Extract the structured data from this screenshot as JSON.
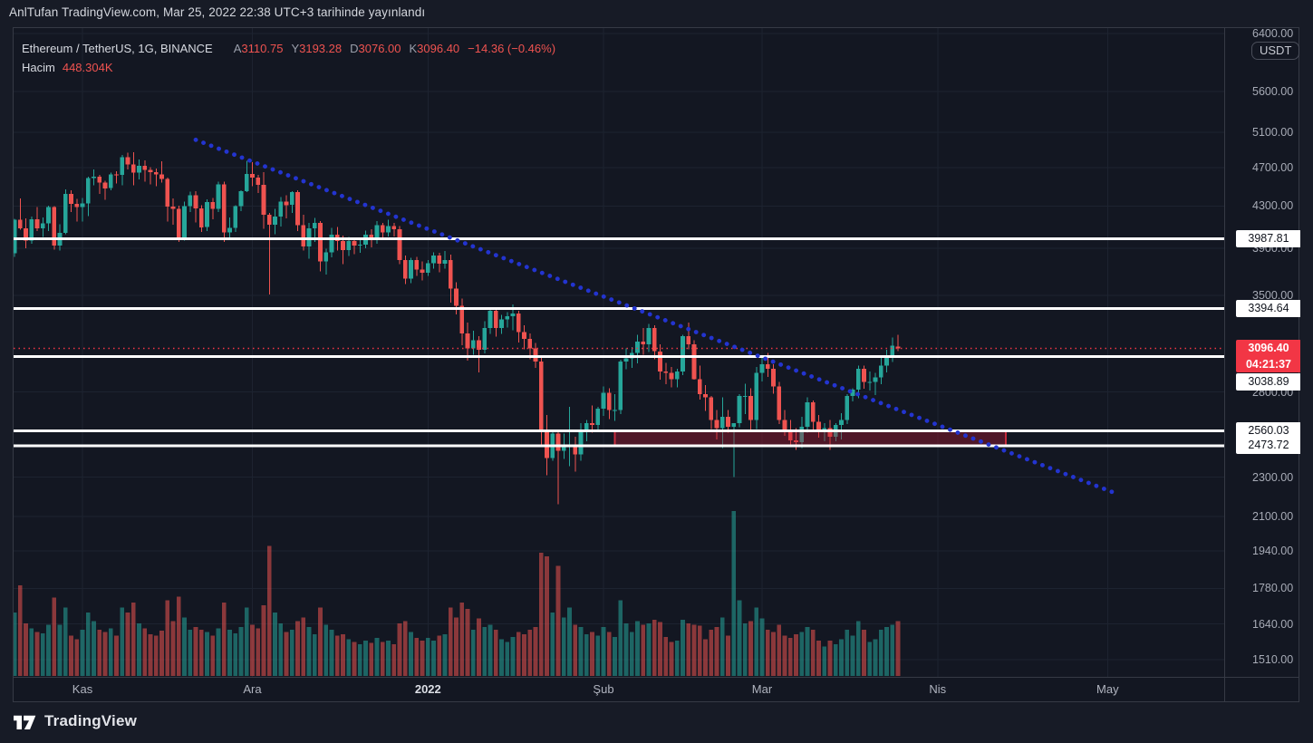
{
  "banner": {
    "text": "AnlTufan TradingView.com, Mar 25, 2022 22:38 UTC+3 tarihinde yayınlandı"
  },
  "legend": {
    "symbol": "Ethereum / TetherUS, 1G, BINANCE",
    "ohlc": [
      {
        "label": "A",
        "value": "3110.75"
      },
      {
        "label": "Y",
        "value": "3193.28"
      },
      {
        "label": "D",
        "value": "3076.00"
      },
      {
        "label": "K",
        "value": "3096.40"
      }
    ],
    "change": "−14.36 (−0.46%)",
    "volume_label": "Hacim",
    "volume_value": "448.304K"
  },
  "price_axis": {
    "currency": "USDT",
    "ticks": [
      "6400.00",
      "5600.00",
      "5100.00",
      "4700.00",
      "4300.00",
      "3900.00",
      "3500.00",
      "2800.00",
      "2300.00",
      "2100.00",
      "1940.00",
      "1780.00",
      "1640.00",
      "1510.00"
    ],
    "current": {
      "price": "3096.40",
      "countdown": "04:21:37"
    }
  },
  "time_axis": {
    "labels": [
      {
        "text": "Kas",
        "day": 12,
        "emphasis": false
      },
      {
        "text": "Ara",
        "day": 42,
        "emphasis": false
      },
      {
        "text": "2022",
        "day": 73,
        "emphasis": true
      },
      {
        "text": "Şub",
        "day": 104,
        "emphasis": false
      },
      {
        "text": "Mar",
        "day": 132,
        "emphasis": false
      },
      {
        "text": "Nis",
        "day": 163,
        "emphasis": false
      },
      {
        "text": "May",
        "day": 193,
        "emphasis": false
      }
    ]
  },
  "footer": {
    "brand": "TradingView"
  },
  "colors": {
    "up": "#26a69a",
    "down": "#ef5350",
    "badge_red": "#f23645",
    "trendline_blue": "#2334d0",
    "zone_border": "#c62b3c",
    "zone_fill": "rgba(178,24,49,0.38)",
    "line_white": "#ffffff",
    "grid": "#1d2330",
    "volume_up": "rgba(38,166,154,0.55)",
    "volume_down": "rgba(239,83,80,0.55)"
  },
  "chart_data": {
    "type": "candlestick",
    "title": "Ethereum / TetherUS, 1G, BINANCE",
    "interval": "1G",
    "scale": {
      "type": "log",
      "tick_values": [
        6400,
        5600,
        5100,
        4700,
        4300,
        3900,
        3500,
        2800,
        2300,
        2100,
        1940,
        1780,
        1640,
        1510
      ]
    },
    "volume_unit": "K",
    "current_price": 3096.4,
    "horizontal_lines": [
      "3987.81",
      "3394.64",
      "3038.89",
      "2560.03",
      "2473.72"
    ],
    "trendline": {
      "from": {
        "day": 32,
        "price": 5010
      },
      "to": {
        "day": 195,
        "price": 2210
      }
    },
    "zone": {
      "from_day": 106,
      "to_day": 175,
      "top": 2560.03,
      "bottom": 2473.72
    },
    "candles": [
      [
        3855,
        4175,
        3825,
        4165,
        520
      ],
      [
        4165,
        4375,
        4070,
        4085,
        740
      ],
      [
        4085,
        4180,
        3900,
        3970,
        430
      ],
      [
        3970,
        4195,
        3940,
        4170,
        390
      ],
      [
        4170,
        4290,
        4060,
        4085,
        360
      ],
      [
        4085,
        4190,
        4005,
        4130,
        350
      ],
      [
        4130,
        4305,
        4060,
        4290,
        420
      ],
      [
        4290,
        4300,
        3890,
        3925,
        640
      ],
      [
        3925,
        4125,
        3880,
        4040,
        420
      ],
      [
        4040,
        4470,
        4030,
        4420,
        560
      ],
      [
        4420,
        4460,
        4240,
        4320,
        330
      ],
      [
        4320,
        4370,
        4150,
        4290,
        300
      ],
      [
        4290,
        4380,
        4150,
        4325,
        380
      ],
      [
        4325,
        4600,
        4200,
        4585,
        520
      ],
      [
        4585,
        4680,
        4510,
        4600,
        450
      ],
      [
        4600,
        4620,
        4420,
        4540,
        380
      ],
      [
        4540,
        4560,
        4360,
        4480,
        360
      ],
      [
        4480,
        4645,
        4460,
        4625,
        390
      ],
      [
        4625,
        4660,
        4530,
        4620,
        330
      ],
      [
        4620,
        4840,
        4510,
        4815,
        560
      ],
      [
        4815,
        4865,
        4680,
        4735,
        520
      ],
      [
        4735,
        4870,
        4510,
        4645,
        600
      ],
      [
        4645,
        4790,
        4570,
        4720,
        430
      ],
      [
        4720,
        4780,
        4550,
        4675,
        390
      ],
      [
        4675,
        4705,
        4520,
        4650,
        340
      ],
      [
        4650,
        4690,
        4500,
        4625,
        330
      ],
      [
        4625,
        4770,
        4540,
        4575,
        370
      ],
      [
        4575,
        4590,
        4150,
        4295,
        620
      ],
      [
        4295,
        4375,
        4120,
        4270,
        450
      ],
      [
        4270,
        4305,
        3960,
        3995,
        650
      ],
      [
        3995,
        4345,
        3970,
        4300,
        480
      ],
      [
        4300,
        4445,
        4240,
        4410,
        380
      ],
      [
        4410,
        4450,
        4140,
        4275,
        400
      ],
      [
        4275,
        4310,
        4050,
        4095,
        380
      ],
      [
        4095,
        4365,
        4060,
        4340,
        360
      ],
      [
        4340,
        4380,
        4170,
        4270,
        330
      ],
      [
        4270,
        4550,
        4240,
        4520,
        390
      ],
      [
        4520,
        4550,
        3960,
        4045,
        600
      ],
      [
        4045,
        4190,
        3990,
        4090,
        380
      ],
      [
        4090,
        4310,
        4050,
        4300,
        350
      ],
      [
        4300,
        4460,
        4250,
        4450,
        400
      ],
      [
        4450,
        4775,
        4440,
        4630,
        560
      ],
      [
        4630,
        4760,
        4500,
        4590,
        420
      ],
      [
        4590,
        4620,
        4430,
        4515,
        390
      ],
      [
        4515,
        4650,
        4080,
        4215,
        580
      ],
      [
        4215,
        4230,
        3505,
        4120,
        1065
      ],
      [
        4120,
        4270,
        4030,
        4195,
        520
      ],
      [
        4195,
        4390,
        4100,
        4345,
        430
      ],
      [
        4345,
        4410,
        4180,
        4310,
        360
      ],
      [
        4310,
        4450,
        4230,
        4440,
        380
      ],
      [
        4440,
        4460,
        4060,
        4115,
        450
      ],
      [
        4115,
        4215,
        3880,
        3915,
        480
      ],
      [
        3915,
        4135,
        3810,
        4085,
        400
      ],
      [
        4085,
        4185,
        3960,
        4135,
        340
      ],
      [
        4135,
        4155,
        3700,
        3785,
        560
      ],
      [
        3785,
        3895,
        3670,
        3865,
        420
      ],
      [
        3865,
        4090,
        3820,
        4025,
        380
      ],
      [
        4025,
        4095,
        3880,
        3965,
        330
      ],
      [
        3965,
        4015,
        3760,
        3885,
        340
      ],
      [
        3885,
        4005,
        3830,
        3965,
        300
      ],
      [
        3965,
        3995,
        3850,
        3925,
        280
      ],
      [
        3925,
        3995,
        3860,
        3935,
        260
      ],
      [
        3935,
        4065,
        3900,
        4025,
        290
      ],
      [
        4025,
        4075,
        3910,
        3985,
        270
      ],
      [
        3985,
        4155,
        3940,
        4115,
        310
      ],
      [
        4115,
        4135,
        3990,
        4045,
        280
      ],
      [
        4045,
        4165,
        4010,
        4105,
        290
      ],
      [
        4105,
        4135,
        4010,
        4075,
        260
      ],
      [
        4075,
        4105,
        3760,
        3795,
        430
      ],
      [
        3795,
        3835,
        3590,
        3635,
        450
      ],
      [
        3635,
        3815,
        3600,
        3795,
        360
      ],
      [
        3795,
        3825,
        3660,
        3715,
        310
      ],
      [
        3715,
        3785,
        3620,
        3685,
        290
      ],
      [
        3685,
        3795,
        3660,
        3770,
        310
      ],
      [
        3770,
        3865,
        3720,
        3835,
        290
      ],
      [
        3835,
        3860,
        3690,
        3765,
        330
      ],
      [
        3765,
        3875,
        3720,
        3795,
        340
      ],
      [
        3795,
        3845,
        3440,
        3555,
        560
      ],
      [
        3555,
        3605,
        3350,
        3415,
        480
      ],
      [
        3415,
        3475,
        3120,
        3205,
        600
      ],
      [
        3205,
        3285,
        3010,
        3095,
        550
      ],
      [
        3095,
        3225,
        3050,
        3155,
        380
      ],
      [
        3155,
        3185,
        2930,
        3085,
        470
      ],
      [
        3085,
        3295,
        3060,
        3245,
        400
      ],
      [
        3245,
        3405,
        3200,
        3375,
        420
      ],
      [
        3375,
        3395,
        3180,
        3245,
        380
      ],
      [
        3245,
        3345,
        3200,
        3310,
        300
      ],
      [
        3310,
        3365,
        3250,
        3335,
        280
      ],
      [
        3335,
        3425,
        3230,
        3355,
        320
      ],
      [
        3355,
        3375,
        3140,
        3215,
        360
      ],
      [
        3215,
        3265,
        3090,
        3165,
        340
      ],
      [
        3165,
        3205,
        3020,
        3095,
        380
      ],
      [
        3095,
        3135,
        2960,
        3005,
        400
      ],
      [
        3005,
        3045,
        2480,
        2565,
        1010
      ],
      [
        2565,
        2655,
        2310,
        2405,
        980
      ],
      [
        2405,
        2565,
        2390,
        2545,
        520
      ],
      [
        2545,
        2555,
        2160,
        2445,
        900
      ],
      [
        2445,
        2545,
        2400,
        2465,
        480
      ],
      [
        2465,
        2705,
        2360,
        2475,
        560
      ],
      [
        2475,
        2525,
        2330,
        2425,
        420
      ],
      [
        2425,
        2605,
        2390,
        2555,
        400
      ],
      [
        2555,
        2625,
        2500,
        2605,
        340
      ],
      [
        2605,
        2715,
        2550,
        2595,
        360
      ],
      [
        2595,
        2705,
        2560,
        2695,
        330
      ],
      [
        2695,
        2835,
        2650,
        2795,
        400
      ],
      [
        2795,
        2825,
        2630,
        2685,
        360
      ],
      [
        2685,
        2785,
        2620,
        2685,
        320
      ],
      [
        2685,
        3015,
        2660,
        3005,
        620
      ],
      [
        3005,
        3095,
        2950,
        3025,
        430
      ],
      [
        3025,
        3105,
        2960,
        3065,
        360
      ],
      [
        3065,
        3195,
        2990,
        3145,
        450
      ],
      [
        3145,
        3245,
        3050,
        3125,
        420
      ],
      [
        3125,
        3275,
        3070,
        3245,
        430
      ],
      [
        3245,
        3265,
        3020,
        3075,
        460
      ],
      [
        3075,
        3125,
        2880,
        2935,
        440
      ],
      [
        2935,
        2995,
        2850,
        2925,
        320
      ],
      [
        2925,
        2965,
        2830,
        2885,
        280
      ],
      [
        2885,
        2955,
        2830,
        2935,
        290
      ],
      [
        2935,
        3195,
        2910,
        3185,
        460
      ],
      [
        3185,
        3285,
        3090,
        3125,
        430
      ],
      [
        3125,
        3155,
        2880,
        2885,
        420
      ],
      [
        2885,
        2975,
        2750,
        2785,
        410
      ],
      [
        2785,
        2845,
        2680,
        2765,
        300
      ],
      [
        2765,
        2775,
        2570,
        2625,
        380
      ],
      [
        2625,
        2685,
        2510,
        2575,
        400
      ],
      [
        2575,
        2765,
        2460,
        2645,
        480
      ],
      [
        2645,
        2685,
        2550,
        2585,
        330
      ],
      [
        2585,
        2605,
        2300,
        2605,
        1350
      ],
      [
        2605,
        2785,
        2580,
        2775,
        620
      ],
      [
        2775,
        2855,
        2660,
        2775,
        430
      ],
      [
        2775,
        2825,
        2560,
        2625,
        450
      ],
      [
        2625,
        2965,
        2570,
        2925,
        560
      ],
      [
        2925,
        3045,
        2870,
        2985,
        470
      ],
      [
        2985,
        3065,
        2900,
        2955,
        380
      ],
      [
        2955,
        2985,
        2790,
        2835,
        360
      ],
      [
        2835,
        2865,
        2600,
        2625,
        420
      ],
      [
        2625,
        2685,
        2530,
        2565,
        330
      ],
      [
        2565,
        2625,
        2480,
        2505,
        310
      ],
      [
        2505,
        2575,
        2450,
        2495,
        340
      ],
      [
        2495,
        2645,
        2460,
        2585,
        360
      ],
      [
        2585,
        2765,
        2550,
        2735,
        400
      ],
      [
        2735,
        2745,
        2560,
        2615,
        380
      ],
      [
        2615,
        2655,
        2520,
        2565,
        290
      ],
      [
        2565,
        2605,
        2500,
        2575,
        240
      ],
      [
        2575,
        2625,
        2450,
        2525,
        290
      ],
      [
        2525,
        2605,
        2500,
        2595,
        260
      ],
      [
        2595,
        2665,
        2510,
        2625,
        300
      ],
      [
        2625,
        2785,
        2600,
        2775,
        380
      ],
      [
        2775,
        2825,
        2740,
        2815,
        330
      ],
      [
        2815,
        2975,
        2760,
        2955,
        450
      ],
      [
        2955,
        2975,
        2820,
        2865,
        380
      ],
      [
        2865,
        2935,
        2810,
        2865,
        280
      ],
      [
        2865,
        2925,
        2780,
        2895,
        300
      ],
      [
        2895,
        3035,
        2850,
        2975,
        380
      ],
      [
        2975,
        3085,
        2930,
        3035,
        400
      ],
      [
        3035,
        3175,
        3000,
        3115,
        420
      ],
      [
        3110.75,
        3193.28,
        3076,
        3096.4,
        448.304
      ]
    ]
  }
}
